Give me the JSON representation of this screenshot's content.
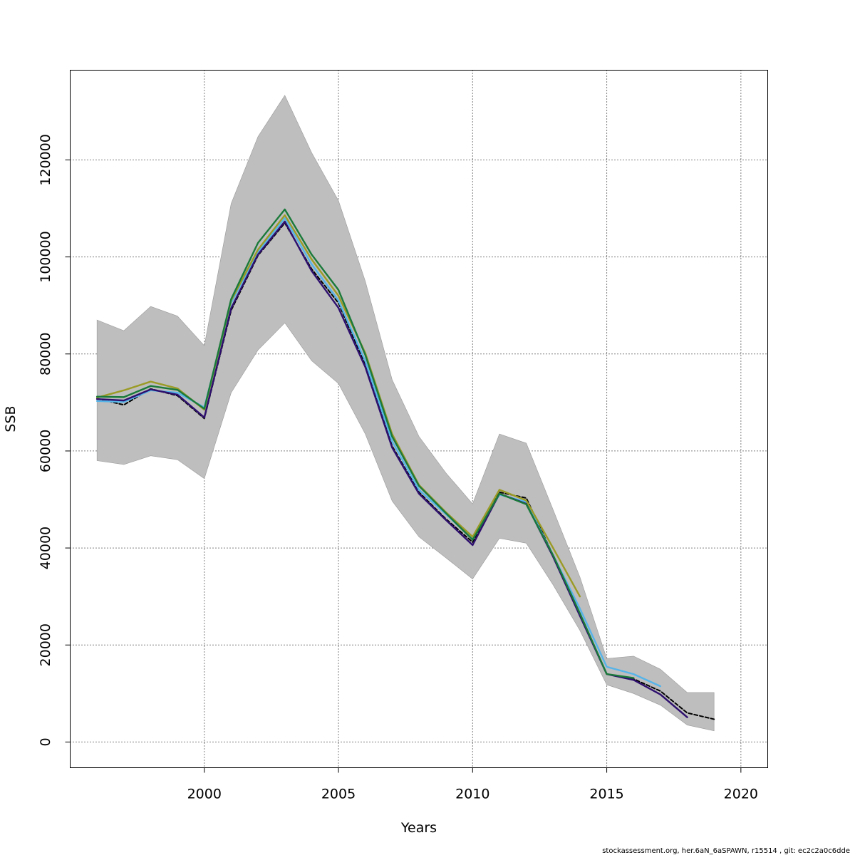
{
  "chart_data": {
    "type": "line",
    "title": "",
    "xlabel": "Years",
    "ylabel": "SSB",
    "xlim": [
      1995,
      2021
    ],
    "ylim": [
      -5300,
      138500
    ],
    "x_ticks": [
      2000,
      2005,
      2010,
      2015,
      2020
    ],
    "y_ticks": [
      0,
      20000,
      40000,
      60000,
      80000,
      100000,
      120000
    ],
    "grid": true,
    "footer": "stockassessment.org, her.6aN_6aSPAWN, r15514 , git: ec2c2a0c6dde",
    "band": {
      "color": "#bebebe",
      "x": [
        1996,
        1997,
        1998,
        1999,
        2000,
        2001,
        2002,
        2003,
        2004,
        2005,
        2006,
        2007,
        2008,
        2009,
        2010,
        2011,
        2012,
        2013,
        2014,
        2015,
        2016,
        2017,
        2018,
        2019
      ],
      "upper": [
        87000,
        84800,
        89800,
        87800,
        81700,
        111000,
        124800,
        133300,
        121500,
        111600,
        95000,
        74700,
        63000,
        55500,
        49100,
        63500,
        61600,
        47900,
        34000,
        17200,
        17700,
        15000,
        10200,
        10200
      ],
      "lower": [
        58000,
        57200,
        59000,
        58200,
        54300,
        72000,
        80800,
        86400,
        78600,
        73900,
        63500,
        49700,
        42300,
        38000,
        33600,
        42000,
        41000,
        32400,
        23000,
        11800,
        10000,
        7600,
        3500,
        2300
      ]
    },
    "series": [
      {
        "color": "#000000",
        "dashed": true,
        "width": 2,
        "x": [
          1996,
          1997,
          1998,
          1999,
          2000,
          2001,
          2002,
          2003,
          2004,
          2005,
          2006,
          2007,
          2008,
          2009,
          2010,
          2011,
          2012,
          2013,
          2014,
          2015,
          2016,
          2017,
          2018,
          2019
        ],
        "values": [
          70800,
          69500,
          72800,
          71400,
          66700,
          89000,
          100300,
          107000,
          97500,
          90500,
          77800,
          61000,
          51500,
          46000,
          41200,
          51500,
          50300,
          38500,
          26500,
          14000,
          13000,
          10500,
          6000,
          4700
        ]
      },
      {
        "color": "#56b4e9",
        "x": [
          1996,
          1997,
          1998,
          1999,
          2000,
          2001,
          2002,
          2003,
          2004,
          2005,
          2006,
          2007,
          2008,
          2009,
          2010,
          2011,
          2012,
          2013,
          2014,
          2015,
          2016,
          2017
        ],
        "values": [
          70300,
          70100,
          72500,
          72000,
          69000,
          90500,
          101000,
          108000,
          98500,
          91000,
          78500,
          62000,
          52000,
          47000,
          41800,
          51000,
          49500,
          38500,
          27500,
          15500,
          14000,
          11500
        ]
      },
      {
        "color": "#9b9b26",
        "x": [
          1996,
          1997,
          1998,
          1999,
          2000,
          2001,
          2002,
          2003,
          2004,
          2005,
          2006,
          2007,
          2008,
          2009,
          2010,
          2011,
          2012,
          2013,
          2014
        ],
        "values": [
          71000,
          72500,
          74300,
          72900,
          68500,
          91000,
          101500,
          108600,
          99500,
          92000,
          80200,
          63500,
          53000,
          47400,
          42300,
          52000,
          49800,
          40000,
          30000
        ]
      },
      {
        "color": "#2e0f6e",
        "x": [
          1996,
          1997,
          1998,
          1999,
          2000,
          2001,
          2002,
          2003,
          2004,
          2005,
          2006,
          2007,
          2008,
          2009,
          2010,
          2011,
          2012,
          2013,
          2014,
          2015,
          2016,
          2017,
          2018
        ],
        "values": [
          70700,
          70400,
          72700,
          71600,
          66900,
          89400,
          100500,
          107300,
          97100,
          89500,
          77300,
          60700,
          51200,
          45800,
          40600,
          51200,
          49100,
          38200,
          26000,
          14000,
          12800,
          9800,
          5100
        ]
      },
      {
        "color": "#1a7a3a",
        "x": [
          1996,
          1997,
          1998,
          1999,
          2000,
          2001,
          2002,
          2003,
          2004,
          2005,
          2006,
          2007,
          2008,
          2009,
          2010,
          2011,
          2012,
          2013,
          2014,
          2015,
          2016
        ],
        "values": [
          71200,
          71100,
          73400,
          72600,
          68700,
          91300,
          102900,
          109800,
          100500,
          93200,
          79800,
          63000,
          52800,
          47200,
          41700,
          51200,
          49000,
          38500,
          26500,
          14000,
          13200
        ]
      }
    ]
  }
}
